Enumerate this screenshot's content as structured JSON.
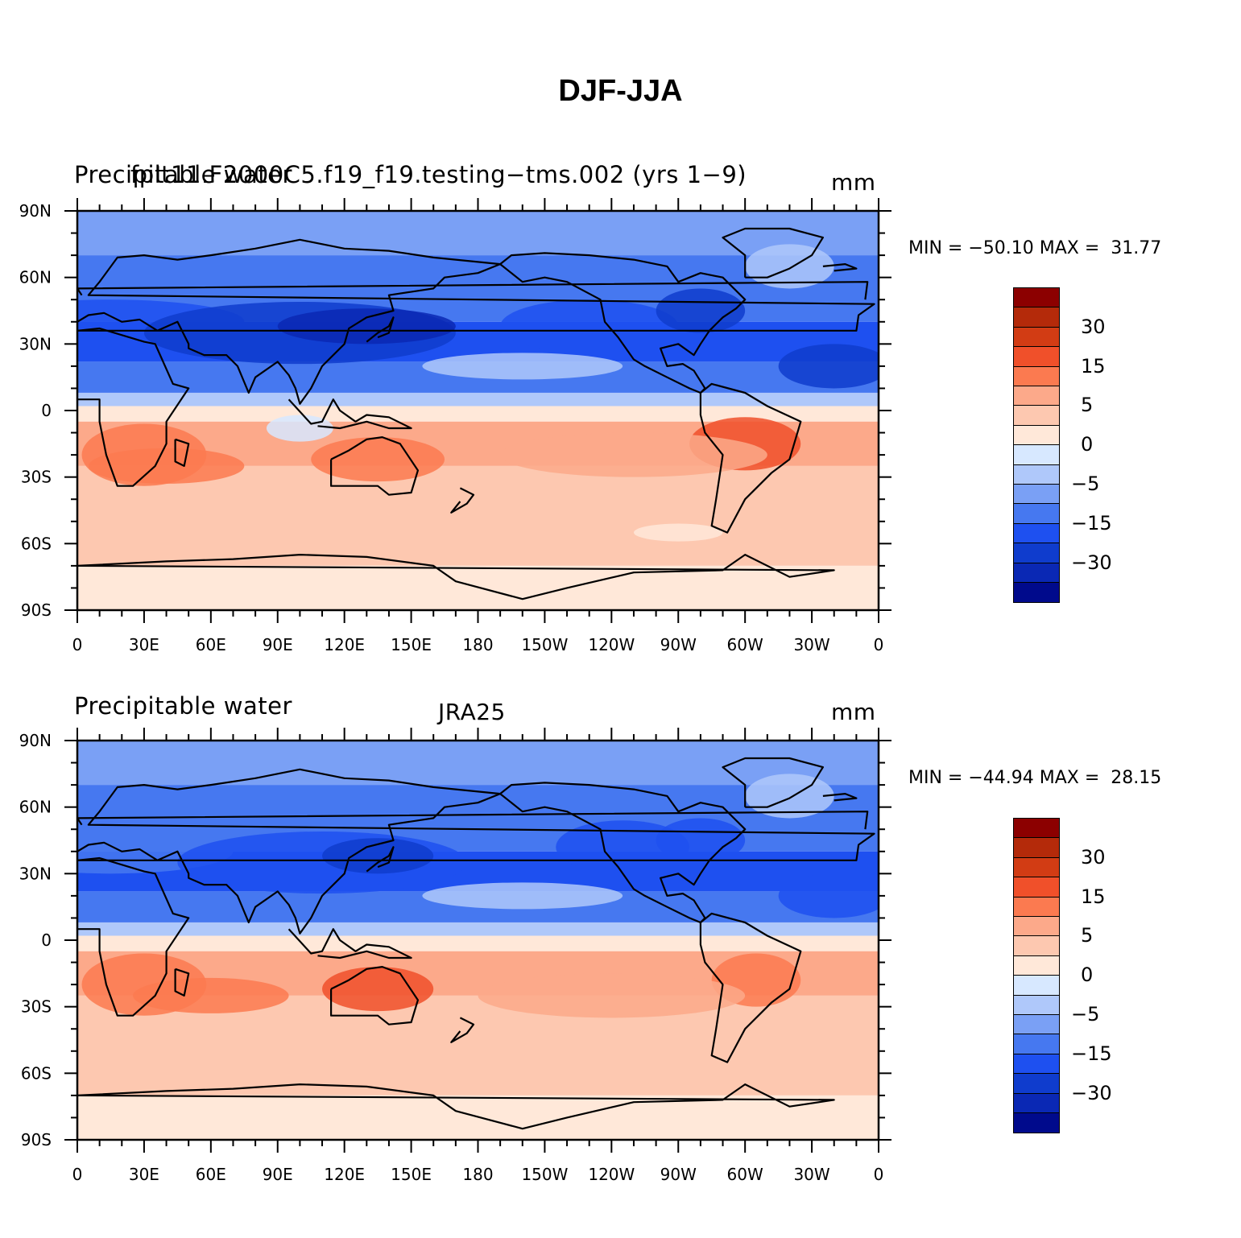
{
  "title": "DJF-JJA",
  "colors": {
    "levels": [
      "#000a8c",
      "#0a28b4",
      "#0f3ccd",
      "#1e50f0",
      "#4678f0",
      "#7aa0f5",
      "#afc8fa",
      "#d7e8ff",
      "#ffe8d9",
      "#fdc8b0",
      "#fca98a",
      "#fb7a50",
      "#f0502a",
      "#d23c14",
      "#b42a0a",
      "#8c0000"
    ]
  },
  "colorbar_labels": [
    "30",
    "15",
    "5",
    "0",
    "−5",
    "−15",
    "−30"
  ],
  "lon_ticks": [
    "0",
    "30E",
    "60E",
    "90E",
    "120E",
    "150E",
    "180",
    "150W",
    "120W",
    "90W",
    "60W",
    "30W",
    "0"
  ],
  "lat_ticks": [
    "90N",
    "60N",
    "30N",
    "0",
    "30S",
    "60S",
    "90S"
  ],
  "panels": [
    {
      "left_label": "Precipitable water",
      "overlay_label": "fplt11.F2000C5.f19_f19.testing−tms.002 (yrs 1−9)",
      "units": "mm",
      "stats": "MIN = −50.10 MAX =  31.77"
    },
    {
      "left_label": "Precipitable water",
      "center_label": "JRA25",
      "units": "mm",
      "stats": "MIN = −44.94 MAX =  28.15"
    }
  ]
}
